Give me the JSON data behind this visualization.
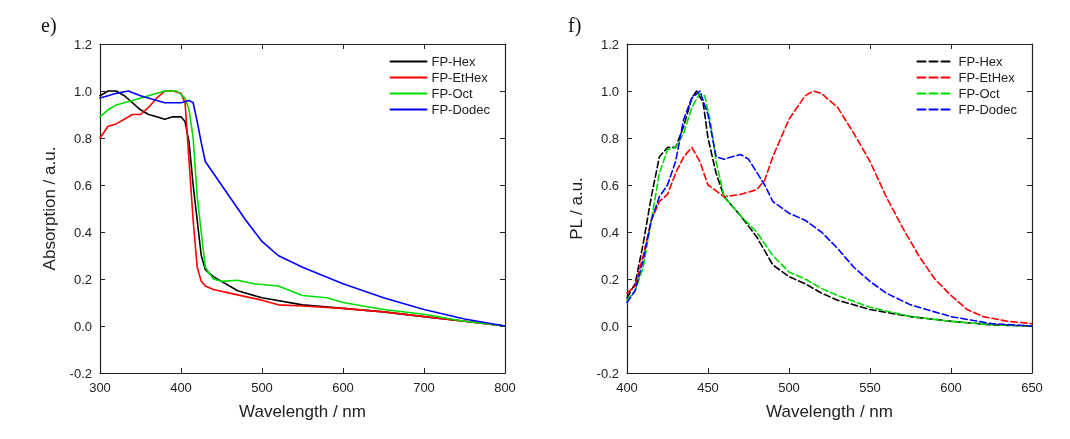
{
  "chart_data": [
    {
      "type": "line",
      "title": "e)",
      "xlabel": "Wavelength / nm",
      "ylabel": "Absorption / a.u.",
      "xlim": [
        300,
        800
      ],
      "xticks": [
        300,
        400,
        500,
        600,
        700,
        800
      ],
      "ylim": [
        -0.2,
        1.2
      ],
      "yticks": [
        {
          "value": -0.2,
          "label": "-0.2"
        },
        {
          "value": 0,
          "label": "0.0"
        },
        0.2,
        0.4,
        0.6,
        0.8,
        {
          "value": 1,
          "label": "1.0"
        },
        1.2
      ],
      "grid": false,
      "legend": "top right",
      "marker": "none",
      "line_style": "solid",
      "series": [
        {
          "name": "FP-Hex",
          "color": "#000000",
          "x": [
            300,
            310,
            320,
            330,
            340,
            350,
            360,
            370,
            380,
            390,
            400,
            405,
            410,
            415,
            420,
            425,
            430,
            440,
            450,
            470,
            500,
            550,
            600,
            650,
            700,
            750,
            800
          ],
          "values": [
            0.98,
            1.0,
            1.0,
            0.98,
            0.95,
            0.92,
            0.9,
            0.89,
            0.88,
            0.89,
            0.89,
            0.87,
            0.78,
            0.6,
            0.45,
            0.3,
            0.24,
            0.21,
            0.19,
            0.15,
            0.12,
            0.09,
            0.075,
            0.06,
            0.04,
            0.02,
            0.0
          ]
        },
        {
          "name": "FP-EtHex",
          "color": "#ff0000",
          "x": [
            300,
            310,
            320,
            330,
            340,
            350,
            360,
            370,
            380,
            390,
            400,
            405,
            410,
            415,
            420,
            425,
            430,
            440,
            460,
            500,
            520,
            550,
            600,
            650,
            700,
            750,
            800
          ],
          "values": [
            0.8,
            0.85,
            0.86,
            0.88,
            0.9,
            0.9,
            0.93,
            0.97,
            1.0,
            1.0,
            0.99,
            0.95,
            0.7,
            0.45,
            0.25,
            0.19,
            0.17,
            0.155,
            0.14,
            0.11,
            0.09,
            0.085,
            0.075,
            0.06,
            0.04,
            0.02,
            0.0
          ]
        },
        {
          "name": "FP-Oct",
          "color": "#00dd00",
          "x": [
            300,
            310,
            320,
            340,
            360,
            380,
            395,
            405,
            410,
            415,
            420,
            425,
            430,
            440,
            450,
            470,
            490,
            520,
            550,
            580,
            600,
            650,
            700,
            750,
            800
          ],
          "values": [
            0.89,
            0.92,
            0.94,
            0.96,
            0.98,
            1.0,
            1.0,
            0.97,
            0.92,
            0.8,
            0.55,
            0.4,
            0.25,
            0.2,
            0.19,
            0.195,
            0.18,
            0.17,
            0.13,
            0.12,
            0.1,
            0.07,
            0.05,
            0.02,
            0.0
          ]
        },
        {
          "name": "FP-Dodec",
          "color": "#0000ff",
          "x": [
            300,
            310,
            320,
            335,
            350,
            370,
            380,
            400,
            410,
            415,
            420,
            425,
            430,
            440,
            460,
            480,
            500,
            520,
            550,
            600,
            650,
            700,
            750,
            800
          ],
          "values": [
            0.97,
            0.98,
            0.99,
            1.0,
            0.98,
            0.96,
            0.95,
            0.95,
            0.96,
            0.95,
            0.87,
            0.78,
            0.7,
            0.65,
            0.55,
            0.45,
            0.36,
            0.3,
            0.25,
            0.18,
            0.12,
            0.07,
            0.03,
            0.0
          ]
        }
      ]
    },
    {
      "type": "line",
      "title": "f)",
      "xlabel": "Wavelength / nm",
      "ylabel": "PL / a.u.",
      "xlim": [
        400,
        650
      ],
      "xticks": [
        400,
        450,
        500,
        550,
        600,
        650
      ],
      "ylim": [
        -0.2,
        1.2
      ],
      "yticks": [
        {
          "value": -0.2,
          "label": "-0.2"
        },
        {
          "value": 0,
          "label": "0.0"
        },
        0.2,
        0.4,
        0.6,
        0.8,
        {
          "value": 1,
          "label": "1.0"
        },
        1.2
      ],
      "grid": false,
      "legend": "top right",
      "marker": "none",
      "line_style": "dashed",
      "series": [
        {
          "name": "FP-Hex",
          "color": "#000000",
          "x": [
            400,
            405,
            410,
            415,
            420,
            425,
            430,
            435,
            440,
            443,
            447,
            450,
            455,
            460,
            470,
            480,
            490,
            500,
            510,
            520,
            530,
            550,
            575,
            600,
            625,
            650
          ],
          "values": [
            0.12,
            0.18,
            0.35,
            0.55,
            0.72,
            0.76,
            0.76,
            0.85,
            0.97,
            1.0,
            0.95,
            0.8,
            0.65,
            0.55,
            0.47,
            0.38,
            0.26,
            0.21,
            0.18,
            0.14,
            0.11,
            0.07,
            0.04,
            0.02,
            0.005,
            0.0
          ]
        },
        {
          "name": "FP-EtHex",
          "color": "#ff0000",
          "x": [
            400,
            405,
            410,
            415,
            420,
            425,
            430,
            435,
            440,
            445,
            450,
            460,
            470,
            480,
            485,
            490,
            500,
            510,
            515,
            520,
            530,
            540,
            550,
            560,
            570,
            580,
            590,
            600,
            610,
            620,
            635,
            650
          ],
          "values": [
            0.14,
            0.17,
            0.3,
            0.45,
            0.53,
            0.56,
            0.65,
            0.72,
            0.76,
            0.7,
            0.6,
            0.55,
            0.56,
            0.58,
            0.62,
            0.72,
            0.88,
            0.98,
            1.0,
            0.99,
            0.93,
            0.82,
            0.7,
            0.55,
            0.42,
            0.3,
            0.2,
            0.13,
            0.07,
            0.04,
            0.02,
            0.01
          ]
        },
        {
          "name": "FP-Oct",
          "color": "#00dd00",
          "x": [
            400,
            405,
            410,
            415,
            420,
            425,
            430,
            435,
            440,
            445,
            448,
            452,
            455,
            460,
            470,
            480,
            490,
            500,
            510,
            520,
            530,
            550,
            575,
            600,
            625,
            650
          ],
          "values": [
            0.11,
            0.15,
            0.25,
            0.45,
            0.65,
            0.75,
            0.76,
            0.82,
            0.93,
            0.99,
            0.98,
            0.85,
            0.7,
            0.55,
            0.47,
            0.4,
            0.3,
            0.23,
            0.2,
            0.16,
            0.13,
            0.08,
            0.04,
            0.02,
            0.005,
            0.0
          ]
        },
        {
          "name": "FP-Dodec",
          "color": "#0000ff",
          "x": [
            400,
            405,
            410,
            415,
            420,
            425,
            430,
            435,
            440,
            445,
            450,
            455,
            460,
            470,
            475,
            485,
            490,
            500,
            510,
            520,
            530,
            540,
            550,
            560,
            575,
            600,
            625,
            650
          ],
          "values": [
            0.1,
            0.15,
            0.28,
            0.45,
            0.55,
            0.6,
            0.7,
            0.88,
            0.97,
            1.0,
            0.9,
            0.72,
            0.71,
            0.73,
            0.71,
            0.6,
            0.53,
            0.48,
            0.45,
            0.4,
            0.33,
            0.25,
            0.19,
            0.14,
            0.09,
            0.04,
            0.01,
            0.0
          ]
        }
      ]
    }
  ]
}
